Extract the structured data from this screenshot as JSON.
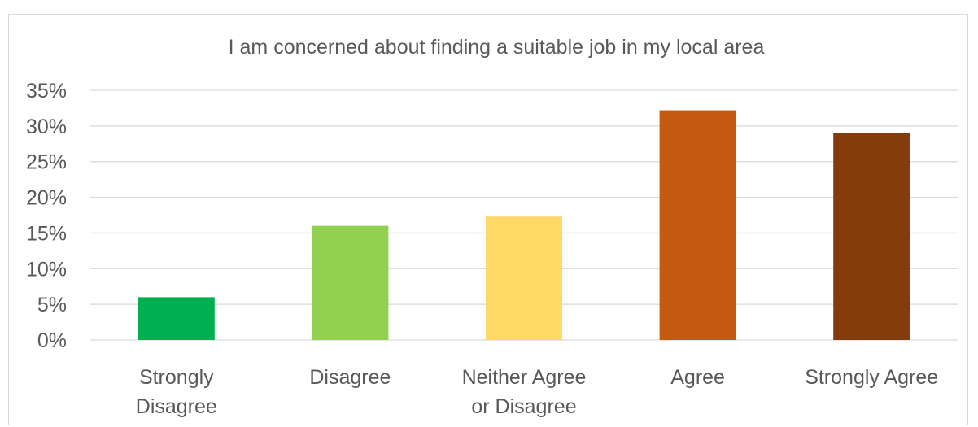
{
  "chart_data": {
    "type": "bar",
    "title": "I am concerned about finding a suitable job in my local area",
    "xlabel": "",
    "ylabel": "",
    "categories": [
      [
        "Strongly",
        "Disagree"
      ],
      [
        "Disagree"
      ],
      [
        "Neither Agree",
        "or Disagree"
      ],
      [
        "Agree"
      ],
      [
        "Strongly Agree"
      ]
    ],
    "values": [
      6,
      16,
      17.3,
      32.2,
      29
    ],
    "colors": [
      "#00b050",
      "#92d050",
      "#ffd966",
      "#c55a11",
      "#843c0c"
    ],
    "ylim": [
      0,
      35
    ],
    "yticks": [
      0,
      5,
      10,
      15,
      20,
      25,
      30,
      35
    ],
    "ytick_format": "percent",
    "ytick_labels": [
      "0%",
      "5%",
      "10%",
      "15%",
      "20%",
      "25%",
      "30%",
      "35%"
    ],
    "grid": true,
    "legend": "none"
  }
}
